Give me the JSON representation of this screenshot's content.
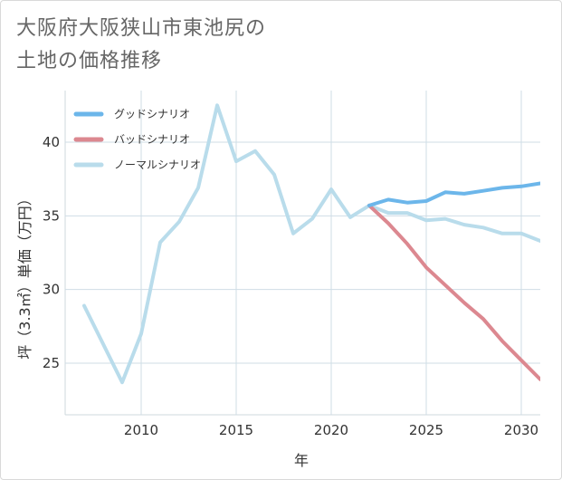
{
  "chart_data": {
    "type": "line",
    "title": "大阪府大阪狭山市東池尻の\n土地の価格推移",
    "xlabel": "年",
    "ylabel": "坪（3.3㎡）単価（万円）",
    "xlim": [
      2006,
      2031
    ],
    "ylim": [
      21.5,
      43.5
    ],
    "x_ticks": [
      "2010",
      "2015",
      "2020",
      "2025",
      "2030"
    ],
    "y_ticks": [
      "25",
      "30",
      "35",
      "40"
    ],
    "grid": true,
    "legend_position": "top-left",
    "series": [
      {
        "name": "グッドシナリオ",
        "color": "#6cb6ea",
        "x": [
          2022,
          2023,
          2024,
          2025,
          2026,
          2027,
          2028,
          2029,
          2030,
          2031
        ],
        "values": [
          35.7,
          36.1,
          35.9,
          36.0,
          36.6,
          36.5,
          36.7,
          36.9,
          37.0,
          37.2
        ]
      },
      {
        "name": "バッドシナリオ",
        "color": "#dc8890",
        "x": [
          2022,
          2023,
          2024,
          2025,
          2026,
          2027,
          2028,
          2029,
          2030,
          2031
        ],
        "values": [
          35.7,
          34.5,
          33.1,
          31.5,
          30.3,
          29.1,
          28.0,
          26.5,
          25.2,
          23.9
        ]
      },
      {
        "name": "ノーマルシナリオ",
        "color": "#b9dceb",
        "x": [
          2007,
          2008,
          2009,
          2010,
          2011,
          2012,
          2013,
          2014,
          2015,
          2016,
          2017,
          2018,
          2019,
          2020,
          2021,
          2022,
          2023,
          2024,
          2025,
          2026,
          2027,
          2028,
          2029,
          2030,
          2031
        ],
        "values": [
          28.9,
          26.3,
          23.7,
          27.0,
          33.2,
          34.6,
          36.9,
          42.5,
          38.7,
          39.4,
          37.8,
          33.8,
          34.8,
          36.8,
          34.9,
          35.7,
          35.2,
          35.2,
          34.7,
          34.8,
          34.4,
          34.2,
          33.8,
          33.8,
          33.3
        ]
      }
    ]
  }
}
